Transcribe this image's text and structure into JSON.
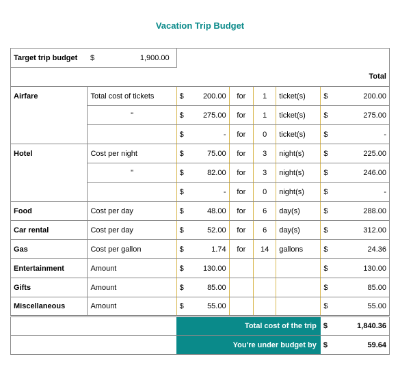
{
  "title": "Vacation Trip Budget",
  "title_color": "#0a8a8a",
  "teal_color": "#0a8a8a",
  "border_color": "#888888",
  "yellow_border": "#d9b84f",
  "target_label": "Target trip budget",
  "target_sym": "$",
  "target_value": "1,900.00",
  "total_header": "Total",
  "for_word": "for",
  "dollar": "$",
  "dash": "-",
  "ditto": "\"",
  "rows": {
    "airfare1": {
      "cat": "Airfare",
      "desc": "Total cost of tickets",
      "cost": "200.00",
      "qty": "1",
      "unit": "ticket(s)",
      "total": "200.00"
    },
    "airfare2": {
      "cat": "",
      "desc": "\"",
      "cost": "275.00",
      "qty": "1",
      "unit": "ticket(s)",
      "total": "275.00"
    },
    "airfare3": {
      "cat": "",
      "desc": "",
      "cost": "-",
      "qty": "0",
      "unit": "ticket(s)",
      "total": "-"
    },
    "hotel1": {
      "cat": "Hotel",
      "desc": "Cost per night",
      "cost": "75.00",
      "qty": "3",
      "unit": "night(s)",
      "total": "225.00"
    },
    "hotel2": {
      "cat": "",
      "desc": "\"",
      "cost": "82.00",
      "qty": "3",
      "unit": "night(s)",
      "total": "246.00"
    },
    "hotel3": {
      "cat": "",
      "desc": "",
      "cost": "-",
      "qty": "0",
      "unit": "night(s)",
      "total": "-"
    },
    "food": {
      "cat": "Food",
      "desc": "Cost per day",
      "cost": "48.00",
      "qty": "6",
      "unit": "day(s)",
      "total": "288.00"
    },
    "car": {
      "cat": "Car rental",
      "desc": "Cost per day",
      "cost": "52.00",
      "qty": "6",
      "unit": "day(s)",
      "total": "312.00"
    },
    "gas": {
      "cat": "Gas",
      "desc": "Cost per gallon",
      "cost": "1.74",
      "qty": "14",
      "unit": "gallons",
      "total": "24.36"
    },
    "ent": {
      "cat": "Entertainment",
      "desc": "Amount",
      "cost": "130.00",
      "total": "130.00"
    },
    "gifts": {
      "cat": "Gifts",
      "desc": "Amount",
      "cost": "85.00",
      "total": "85.00"
    },
    "misc": {
      "cat": "Miscellaneous",
      "desc": "Amount",
      "cost": "55.00",
      "total": "55.00"
    }
  },
  "summary": {
    "total_label": "Total cost of the trip",
    "total_value": "1,840.36",
    "under_label": "You're under budget by",
    "under_value": "59.64"
  }
}
